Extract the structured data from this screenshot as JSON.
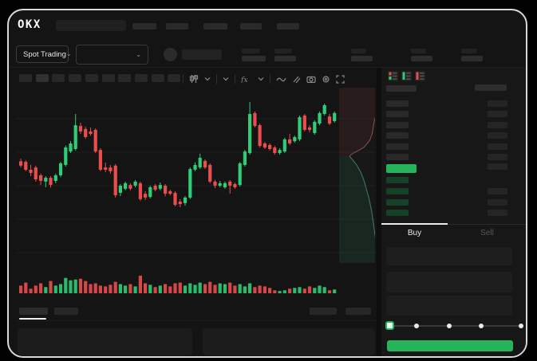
{
  "header": {
    "brand": "OKX",
    "nav_placeholder_widths": [
      30,
      28,
      30,
      27,
      28
    ],
    "search_placeholder": ""
  },
  "market_row": {
    "market_selector_label": "Spot Trading",
    "stat_placeholder_count": 5
  },
  "chart_toolbar": {
    "timeframe_button_count": 10,
    "icons": [
      "candle-type",
      "chevron-down",
      "chevron-down",
      "indicators-fx",
      "chevron-down",
      "trendline",
      "draw",
      "camera",
      "settings",
      "fullscreen"
    ]
  },
  "orderbook": {
    "view_icons": [
      "book-all",
      "book-bids",
      "book-asks"
    ],
    "ask_row_count": 6,
    "bid_row_count": 4,
    "bid_rows_with_amount": [
      1,
      2,
      3
    ],
    "last_price_highlight": "green"
  },
  "trade": {
    "buy_label": "Buy",
    "sell_label": "Sell",
    "field_count": 3,
    "slider_steps": 5,
    "slider_active_index": 0
  },
  "bottom": {
    "tab_placeholder_widths": [
      36,
      30
    ],
    "right_placeholder_widths": [
      34,
      32
    ],
    "panel_count": 2
  },
  "colors": {
    "up": "#2fcd77",
    "down": "#eb4d4d",
    "accent_green": "#27b35c",
    "depth_ask_line": "#8a5050",
    "depth_bid_line": "#3f8066",
    "bid_row_green": "#174029",
    "tab_active_text": "#ececec",
    "tab_inactive_text": "#585858"
  },
  "chart_data": {
    "type": "candlestick+volume+depth",
    "title": "",
    "axis_labels_visible": false,
    "price_range": [
      0,
      100
    ],
    "gridline_prices": [
      82.3,
      63.2,
      44.1,
      25.0,
      5.9
    ],
    "candles": [
      [
        58,
        59.5,
        54.5,
        55.5
      ],
      [
        57.7,
        58.6,
        52.3,
        53.2
      ],
      [
        53.2,
        56,
        49.5,
        51.4
      ],
      [
        54.5,
        55.5,
        46.4,
        47.7
      ],
      [
        50,
        51,
        44.5,
        46.8
      ],
      [
        46.4,
        49.5,
        43.2,
        48.6
      ],
      [
        48.6,
        49.5,
        43,
        44.5
      ],
      [
        46.8,
        51,
        45.5,
        50
      ],
      [
        50,
        57.7,
        49,
        56.8
      ],
      [
        55.9,
        67,
        55,
        65.9
      ],
      [
        63.6,
        69.5,
        62.7,
        68.2
      ],
      [
        65,
        85,
        64.1,
        78.6
      ],
      [
        78.2,
        80,
        73.6,
        75
      ],
      [
        76.4,
        77.7,
        70.9,
        71.8
      ],
      [
        75,
        77.3,
        72.7,
        73.6
      ],
      [
        75.9,
        76.8,
        62.7,
        63.6
      ],
      [
        64.5,
        65.5,
        52.3,
        53.2
      ],
      [
        54.5,
        57.3,
        51.8,
        53.2
      ],
      [
        54.5,
        55.9,
        50.9,
        52.3
      ],
      [
        55.5,
        56.4,
        37.3,
        38.6
      ],
      [
        40,
        45,
        38.2,
        44.1
      ],
      [
        42.3,
        46.4,
        41.4,
        45.5
      ],
      [
        44.5,
        45.5,
        41.4,
        42.3
      ],
      [
        44.1,
        47.3,
        43.2,
        46.4
      ],
      [
        45.5,
        46.4,
        35.5,
        36.4
      ],
      [
        39.5,
        40.9,
        35.9,
        37.3
      ],
      [
        37.7,
        44.1,
        36.8,
        43.2
      ],
      [
        44.1,
        45,
        40.9,
        41.8
      ],
      [
        42.3,
        45.9,
        41.4,
        44.5
      ],
      [
        44.1,
        45,
        38,
        39.5
      ],
      [
        40.9,
        41.8,
        38.6,
        39.5
      ],
      [
        40,
        40.9,
        32.3,
        33.2
      ],
      [
        35,
        36.4,
        31.8,
        33.6
      ],
      [
        34.1,
        38.2,
        32.7,
        37.3
      ],
      [
        37.3,
        54.5,
        36.4,
        53.6
      ],
      [
        53.2,
        57.3,
        52.3,
        55.9
      ],
      [
        54.5,
        62.3,
        53.6,
        60
      ],
      [
        58.2,
        59.1,
        53.6,
        54.5
      ],
      [
        55.9,
        56.8,
        45.5,
        46.4
      ],
      [
        46.4,
        47.3,
        42.7,
        44.1
      ],
      [
        44.1,
        46.8,
        43.2,
        45.5
      ],
      [
        43.2,
        46.4,
        42.3,
        45.5
      ],
      [
        46.4,
        47.3,
        39.5,
        44.1
      ],
      [
        45,
        45.9,
        42.3,
        43.2
      ],
      [
        44.5,
        57.7,
        43.6,
        56.8
      ],
      [
        55.9,
        64.5,
        55,
        63.6
      ],
      [
        62.7,
        91.8,
        61.8,
        85
      ],
      [
        85.5,
        86.4,
        77.3,
        78.2
      ],
      [
        78.6,
        79.5,
        65.9,
        66.8
      ],
      [
        68.2,
        69.1,
        65,
        65.9
      ],
      [
        67.3,
        68.2,
        64.1,
        65
      ],
      [
        65.9,
        66.8,
        61.8,
        62.7
      ],
      [
        62.7,
        65.5,
        61.8,
        64.5
      ],
      [
        63.6,
        71.4,
        62.7,
        70.5
      ],
      [
        70.5,
        73.6,
        67.3,
        68.2
      ],
      [
        69.5,
        72.7,
        68.6,
        71.8
      ],
      [
        70.5,
        84.1,
        69.5,
        83.2
      ],
      [
        84.1,
        85,
        75,
        75.9
      ],
      [
        77.3,
        78.6,
        74.5,
        75.9
      ],
      [
        74.1,
        81.4,
        73.2,
        80.5
      ],
      [
        79.5,
        86.4,
        78.6,
        85.5
      ],
      [
        85,
        90.9,
        84.1,
        90
      ],
      [
        83.6,
        85,
        78.6,
        79.5
      ],
      [
        80.9,
        86.4,
        80,
        85.5
      ]
    ],
    "volume": [
      40,
      56,
      24,
      40,
      52,
      32,
      64,
      40,
      48,
      80,
      68,
      72,
      76,
      64,
      48,
      52,
      40,
      36,
      44,
      60,
      48,
      40,
      48,
      36,
      92,
      52,
      44,
      32,
      40,
      48,
      36,
      52,
      56,
      40,
      52,
      44,
      56,
      48,
      60,
      44,
      52,
      48,
      56,
      40,
      48,
      36,
      52,
      32,
      40,
      36,
      28,
      16,
      12,
      16,
      24,
      28,
      32,
      24,
      36,
      28,
      40,
      32,
      16,
      20
    ],
    "depth": {
      "asks": [
        [
          1.0,
          0.0
        ],
        [
          0.95,
          0.05
        ],
        [
          0.92,
          0.1
        ],
        [
          0.88,
          0.16
        ],
        [
          0.84,
          0.2
        ],
        [
          0.8,
          0.26
        ],
        [
          0.74,
          0.3
        ],
        [
          0.6,
          0.34
        ],
        [
          0.45,
          0.36
        ],
        [
          0.3,
          0.38
        ],
        [
          0.25,
          0.39
        ]
      ],
      "bids": [
        [
          0.25,
          0.39
        ],
        [
          0.42,
          0.44
        ],
        [
          0.52,
          0.48
        ],
        [
          0.6,
          0.53
        ],
        [
          0.66,
          0.58
        ],
        [
          0.72,
          0.63
        ],
        [
          0.78,
          0.7
        ],
        [
          0.83,
          0.78
        ],
        [
          0.87,
          0.85
        ],
        [
          0.91,
          0.93
        ],
        [
          0.94,
          1.0
        ]
      ]
    }
  }
}
